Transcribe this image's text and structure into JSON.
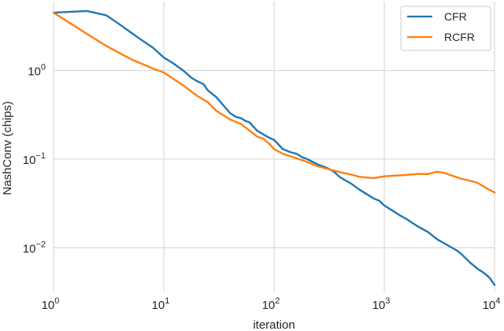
{
  "chart_data": {
    "type": "line",
    "xlabel": "iteration",
    "ylabel": "NashConv (chips)",
    "xscale": "log",
    "yscale": "log",
    "xlim": [
      1,
      10000
    ],
    "ylim": [
      0.0032,
      6.0
    ],
    "grid": true,
    "legend_position": "top-right",
    "x_ticks": [
      {
        "value": 1,
        "base": "10",
        "exp": "0"
      },
      {
        "value": 10,
        "base": "10",
        "exp": "1"
      },
      {
        "value": 100,
        "base": "10",
        "exp": "2"
      },
      {
        "value": 1000,
        "base": "10",
        "exp": "3"
      },
      {
        "value": 10000,
        "base": "10",
        "exp": "4"
      }
    ],
    "y_ticks": [
      {
        "value": 0.01,
        "base": "10",
        "exp": "−2"
      },
      {
        "value": 0.1,
        "base": "10",
        "exp": "−1"
      },
      {
        "value": 1,
        "base": "10",
        "exp": "0"
      }
    ],
    "series": [
      {
        "name": "CFR",
        "color": "#1f77b4",
        "x": [
          1,
          2,
          3,
          4,
          5,
          6,
          8,
          10,
          12,
          15,
          18,
          20,
          23,
          25,
          30,
          35,
          40,
          45,
          50,
          55,
          60,
          70,
          80,
          90,
          100,
          120,
          140,
          160,
          180,
          200,
          250,
          300,
          350,
          400,
          450,
          500,
          600,
          700,
          800,
          900,
          1000,
          1200,
          1400,
          1600,
          1800,
          2000,
          2500,
          3000,
          3500,
          4000,
          4500,
          5000,
          6000,
          7000,
          8000,
          9000,
          10000
        ],
        "y": [
          4.5,
          4.7,
          4.2,
          3.3,
          2.7,
          2.3,
          1.8,
          1.4,
          1.22,
          1.0,
          0.82,
          0.76,
          0.7,
          0.6,
          0.5,
          0.4,
          0.33,
          0.3,
          0.29,
          0.27,
          0.26,
          0.21,
          0.19,
          0.175,
          0.165,
          0.13,
          0.12,
          0.115,
          0.105,
          0.1,
          0.087,
          0.08,
          0.072,
          0.062,
          0.057,
          0.053,
          0.045,
          0.04,
          0.036,
          0.034,
          0.03,
          0.026,
          0.023,
          0.021,
          0.019,
          0.0175,
          0.015,
          0.0125,
          0.0112,
          0.0102,
          0.0094,
          0.0085,
          0.0068,
          0.0058,
          0.0052,
          0.0046,
          0.0038
        ]
      },
      {
        "name": "RCFR",
        "color": "#ff7f0e",
        "x": [
          1,
          2,
          3,
          5,
          8,
          10,
          15,
          20,
          25,
          30,
          40,
          50,
          60,
          70,
          80,
          90,
          100,
          120,
          150,
          200,
          250,
          300,
          400,
          500,
          600,
          800,
          1000,
          1500,
          2000,
          2500,
          3000,
          3500,
          4000,
          5000,
          6000,
          7000,
          8000,
          9000,
          10000
        ],
        "y": [
          4.5,
          2.6,
          1.9,
          1.35,
          1.05,
          0.95,
          0.68,
          0.52,
          0.44,
          0.35,
          0.28,
          0.25,
          0.21,
          0.18,
          0.17,
          0.15,
          0.13,
          0.115,
          0.105,
          0.093,
          0.083,
          0.078,
          0.071,
          0.067,
          0.063,
          0.061,
          0.064,
          0.066,
          0.068,
          0.068,
          0.072,
          0.07,
          0.066,
          0.06,
          0.057,
          0.054,
          0.049,
          0.045,
          0.042
        ]
      }
    ]
  }
}
